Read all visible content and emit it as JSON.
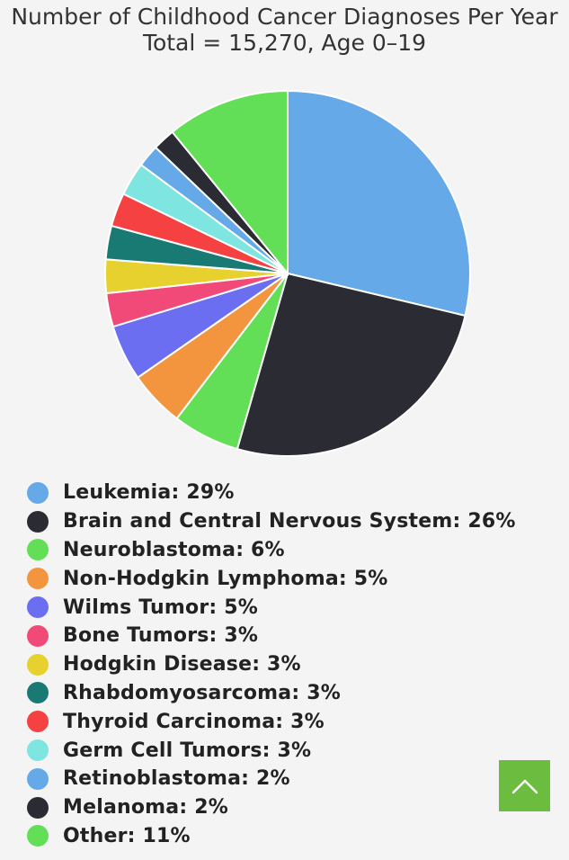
{
  "chart_data": {
    "type": "pie",
    "title": "Number of Childhood Cancer Diagnoses Per Year",
    "subtitle": "Total = 15,270, Age 0–19",
    "slices": [
      {
        "label": "Leukemia: 29%",
        "value": 29,
        "color": "#65a9e8"
      },
      {
        "label": "Brain and Central Nervous System: 26%",
        "value": 26,
        "color": "#2b2b33"
      },
      {
        "label": "Neuroblastoma: 6%",
        "value": 6,
        "color": "#62df56"
      },
      {
        "label": "Non-Hodgkin Lymphoma: 5%",
        "value": 5,
        "color": "#f3953f"
      },
      {
        "label": "Wilms Tumor: 5%",
        "value": 5,
        "color": "#6c6ef2"
      },
      {
        "label": "Bone Tumors: 3%",
        "value": 3,
        "color": "#f24a78"
      },
      {
        "label": "Hodgkin Disease: 3%",
        "value": 3,
        "color": "#e6d12e"
      },
      {
        "label": "Rhabdomyosarcoma: 3%",
        "value": 3,
        "color": "#197a74"
      },
      {
        "label": "Thyroid Carcinoma: 3%",
        "value": 3,
        "color": "#f54141"
      },
      {
        "label": "Germ Cell Tumors: 3%",
        "value": 3,
        "color": "#7ee5e0"
      },
      {
        "label": "Retinoblastoma: 2%",
        "value": 2,
        "color": "#65a9e8"
      },
      {
        "label": "Melanoma: 2%",
        "value": 2,
        "color": "#2b2b33"
      },
      {
        "label": "Other: 11%",
        "value": 11,
        "color": "#62df56"
      }
    ],
    "legend_position": "bottom-left"
  },
  "ui": {
    "scroll_top_color": "#6cbd3f",
    "scroll_top_icon": "chevron-up-icon"
  }
}
